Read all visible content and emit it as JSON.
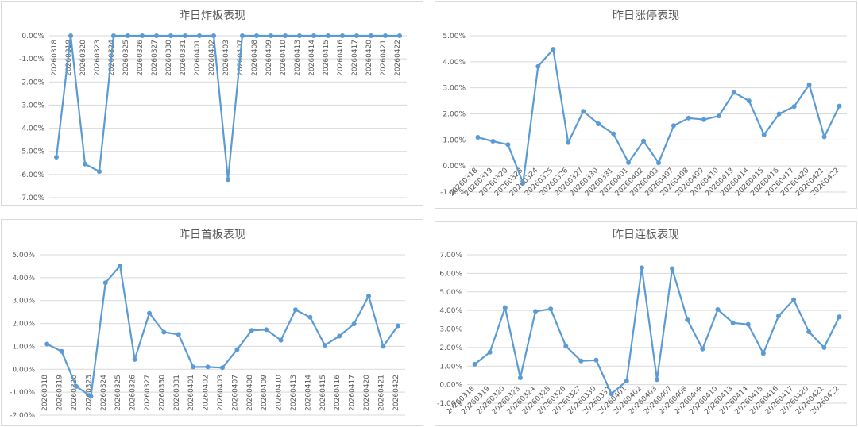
{
  "colors": {
    "line": "#5b9bd5",
    "grid": "#d9d9d9",
    "text": "#595959"
  },
  "chart_data": [
    {
      "type": "line",
      "title": "昨日炸板表现",
      "categories": [
        "20260318",
        "20260319",
        "20260320",
        "20260323",
        "20260324",
        "20260325",
        "20260326",
        "20260327",
        "20260330",
        "20260331",
        "20260401",
        "20260402",
        "20260403",
        "20260407",
        "20260408",
        "20260409",
        "20260410",
        "20260413",
        "20260414",
        "20260415",
        "20260416",
        "20260417",
        "20260420",
        "20260421",
        "20260422"
      ],
      "values": [
        -5.25,
        0.0,
        -5.55,
        -5.87,
        0.0,
        0.0,
        0.0,
        0.0,
        0.0,
        0.0,
        0.0,
        0.0,
        -6.22,
        0.0,
        0.0,
        0.0,
        0.0,
        0.0,
        0.0,
        0.0,
        0.0,
        0.0,
        0.0,
        0.0,
        0.0
      ],
      "yticks": [
        "0.00%",
        "-1.00%",
        "-2.00%",
        "-3.00%",
        "-4.00%",
        "-5.00%",
        "-6.00%",
        "-7.00%"
      ],
      "ylim": [
        -7,
        0
      ],
      "xlabel_position": "top",
      "grid": true
    },
    {
      "type": "line",
      "title": "昨日涨停表现",
      "categories": [
        "20260318",
        "20260319",
        "20260320",
        "20260323",
        "20260324",
        "20260325",
        "20260326",
        "20260327",
        "20260330",
        "20260331",
        "20260401",
        "20260402",
        "20260403",
        "20260407",
        "20260408",
        "20260409",
        "20260410",
        "20260413",
        "20260414",
        "20260415",
        "20260416",
        "20260417",
        "20260420",
        "20260421",
        "20260422"
      ],
      "values": [
        1.1,
        0.95,
        0.82,
        -0.65,
        3.82,
        4.48,
        0.9,
        2.1,
        1.62,
        1.24,
        0.13,
        0.96,
        0.12,
        1.55,
        1.84,
        1.78,
        1.92,
        2.82,
        2.5,
        1.2,
        2.0,
        2.28,
        3.12,
        1.12,
        2.3
      ],
      "yticks": [
        "5.00%",
        "4.00%",
        "3.00%",
        "2.00%",
        "1.00%",
        "0.00%",
        "-1.00%"
      ],
      "ylim": [
        -1,
        5
      ],
      "xlabel_position": "bottom",
      "grid": true
    },
    {
      "type": "line",
      "title": "昨日首板表现",
      "categories": [
        "20260318",
        "20260319",
        "20260320",
        "20260323",
        "20260324",
        "20260325",
        "20260326",
        "20260327",
        "20260330",
        "20260331",
        "20260401",
        "20260402",
        "20260403",
        "20260407",
        "20260408",
        "20260409",
        "20260410",
        "20260413",
        "20260414",
        "20260415",
        "20260416",
        "20260417",
        "20260420",
        "20260421",
        "20260422"
      ],
      "values": [
        1.1,
        0.78,
        -0.75,
        -1.18,
        3.78,
        4.52,
        0.43,
        2.45,
        1.62,
        1.52,
        0.1,
        0.1,
        0.07,
        0.86,
        1.7,
        1.73,
        1.27,
        2.6,
        2.27,
        1.05,
        1.45,
        1.98,
        3.2,
        1.0,
        1.9
      ],
      "yticks": [
        "5.00%",
        "4.00%",
        "3.00%",
        "2.00%",
        "1.00%",
        "0.00%",
        "-1.00%",
        "-2.00%"
      ],
      "ylim": [
        -2,
        5
      ],
      "xlabel_position": "bottom",
      "grid": true
    },
    {
      "type": "line",
      "title": "昨日连板表现",
      "categories": [
        "20260318",
        "20260319",
        "20260320",
        "20260323",
        "20260324",
        "20260325",
        "20260326",
        "20260327",
        "20260330",
        "20260331",
        "20260401",
        "20260402",
        "20260403",
        "20260407",
        "20260408",
        "20260409",
        "20260410",
        "20260413",
        "20260414",
        "20260415",
        "20260416",
        "20260417",
        "20260420",
        "20260421",
        "20260422"
      ],
      "values": [
        1.1,
        1.75,
        4.15,
        0.37,
        3.95,
        4.08,
        2.07,
        1.28,
        1.32,
        -0.5,
        0.2,
        6.3,
        0.27,
        6.25,
        3.5,
        1.92,
        4.05,
        3.33,
        3.25,
        1.68,
        3.7,
        4.58,
        2.85,
        2.0,
        3.65
      ],
      "yticks": [
        "7.00%",
        "6.00%",
        "5.00%",
        "4.00%",
        "3.00%",
        "2.00%",
        "1.00%",
        "0.00%",
        "-1.00%"
      ],
      "ylim": [
        -1,
        7
      ],
      "xlabel_position": "bottom",
      "grid": true
    }
  ]
}
